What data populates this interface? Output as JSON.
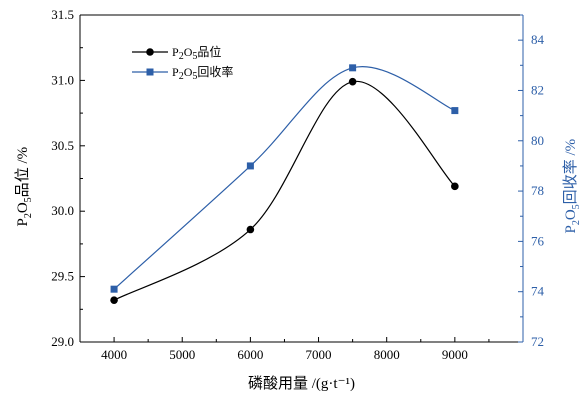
{
  "chart_data": {
    "type": "line",
    "x": [
      4000,
      6000,
      7500,
      9000
    ],
    "xlim": [
      3500,
      10000
    ],
    "x_ticks": [
      "4000",
      "5000",
      "6000",
      "7000",
      "8000",
      "9000"
    ],
    "x_tick_values": [
      4000,
      5000,
      6000,
      7000,
      8000,
      9000
    ],
    "xlabel": "磷酸用量 /(g·t⁻¹)",
    "y_left": {
      "label_main": "P",
      "label_sub1": "2",
      "label_mid": "O",
      "label_sub2": "5",
      "label_tail": "品位 /%",
      "lim": [
        29.0,
        31.5
      ],
      "ticks": [
        "29.0",
        "29.5",
        "30.0",
        "30.5",
        "31.0",
        "31.5"
      ],
      "tick_values": [
        29.0,
        29.5,
        30.0,
        30.5,
        31.0,
        31.5
      ]
    },
    "y_right": {
      "label_main": "P",
      "label_sub1": "2",
      "label_mid": "O",
      "label_sub2": "5",
      "label_tail": "回收率 /%",
      "lim": [
        72,
        85
      ],
      "ticks": [
        "72",
        "74",
        "76",
        "78",
        "80",
        "82",
        "84"
      ],
      "tick_values": [
        72,
        74,
        76,
        78,
        80,
        82,
        84
      ],
      "color": "#2d5fa8"
    },
    "series": [
      {
        "name": "P₂O₅品位",
        "axis": "left",
        "marker": "circle",
        "color": "#000000",
        "values": [
          29.32,
          29.86,
          30.99,
          30.19
        ]
      },
      {
        "name": "P₂O₅回收率",
        "axis": "right",
        "marker": "square",
        "color": "#2d5fa8",
        "values": [
          74.1,
          79.0,
          82.9,
          81.2
        ]
      }
    ],
    "legend": {
      "placement": "top-left",
      "items": [
        {
          "main": "P",
          "sub1": "2",
          "mid": "O",
          "sub2": "5",
          "tail": "品位"
        },
        {
          "main": "P",
          "sub1": "2",
          "mid": "O",
          "sub2": "5",
          "tail": "回收率"
        }
      ]
    },
    "grid": false
  }
}
